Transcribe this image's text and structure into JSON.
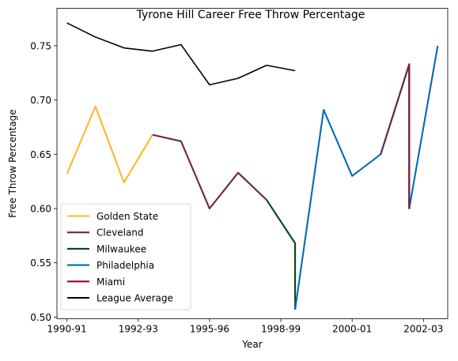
{
  "chart_data": {
    "type": "line",
    "title": "Tyrone Hill Career Free Throw Percentage",
    "xlabel": "Year",
    "ylabel": "Free Throw Percentage",
    "x_ticks": [
      "1990-91",
      "1992-93",
      "1995-96",
      "1998-99",
      "2000-01",
      "2002-03"
    ],
    "y_ticks": [
      "0.50",
      "0.55",
      "0.60",
      "0.65",
      "0.70",
      "0.75"
    ],
    "xlim": [
      1989.65,
      2003.35
    ],
    "ylim": [
      0.4985,
      0.7845
    ],
    "grid": false,
    "legend_position": "lower-left",
    "series": [
      {
        "name": "Golden State",
        "color": "#FDB927",
        "x": [
          1990,
          1991,
          1992,
          1993
        ],
        "y": [
          0.632,
          0.694,
          0.624,
          0.668
        ]
      },
      {
        "name": "Cleveland",
        "color": "#6F263D",
        "x": [
          1993,
          1994,
          1995,
          1996,
          1997
        ],
        "y": [
          0.668,
          0.662,
          0.6,
          0.633,
          0.608
        ]
      },
      {
        "name": "Milwaukee",
        "color": "#00471B",
        "x": [
          1997,
          1998,
          1998
        ],
        "y": [
          0.608,
          0.568,
          0.507
        ]
      },
      {
        "name": "Philadelphia",
        "color": "#006BB6",
        "x": [
          1998,
          1999,
          2000,
          2001,
          2002,
          2002,
          2003
        ],
        "y": [
          0.507,
          0.691,
          0.63,
          0.65,
          0.733,
          0.6,
          0.75
        ]
      },
      {
        "name": "Miami",
        "color": "#98002E",
        "x": [
          2002,
          2002
        ],
        "y": [
          0.733,
          0.6
        ]
      },
      {
        "name": "Cleveland",
        "color": "#6F263D",
        "legend": false,
        "x": [
          2001,
          2002,
          2002
        ],
        "y": [
          0.65,
          0.733,
          0.6
        ]
      },
      {
        "name": "League Average",
        "color": "#000000",
        "x": [
          1990,
          1991,
          1992,
          1993,
          1994,
          1995,
          1996,
          1997,
          1998
        ],
        "y": [
          0.771,
          0.758,
          0.748,
          0.745,
          0.751,
          0.714,
          0.72,
          0.732,
          0.727
        ]
      }
    ]
  }
}
